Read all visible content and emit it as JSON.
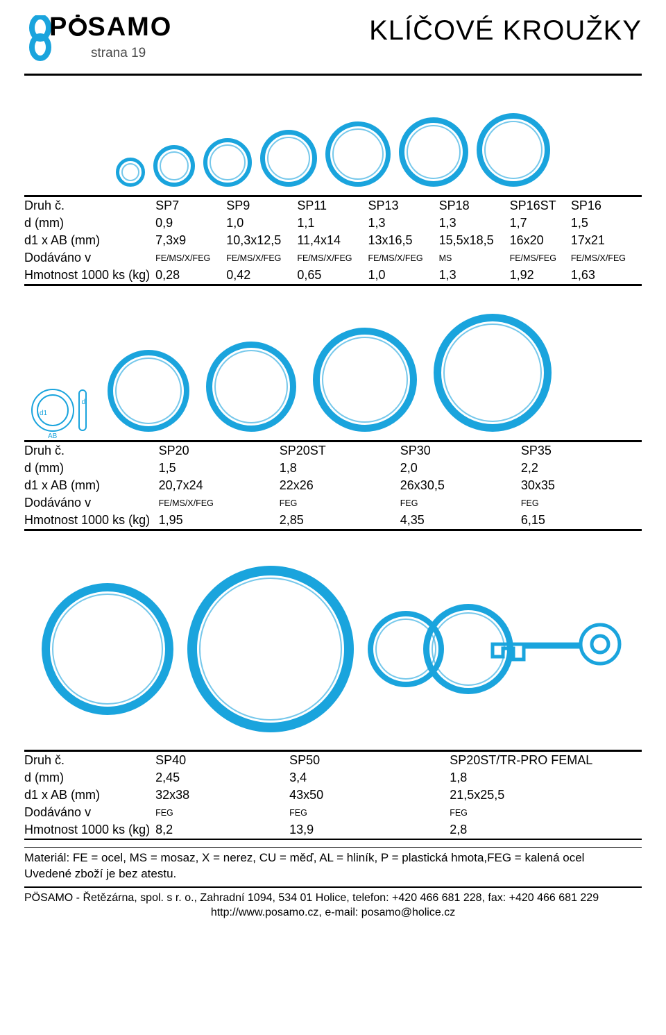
{
  "brand": "PÖSAMO",
  "page_label": "strana 19",
  "title": "KLÍČOVÉ KROUŽKY",
  "accent_color": "#1aa4dd",
  "diagram_labels": {
    "d": "d",
    "d1": "d1",
    "ab": "AB"
  },
  "table1": {
    "row_labels": [
      "Druh č.",
      "d (mm)",
      "d1 x AB (mm)",
      "Dodáváno v",
      "Hmotnost 1000 ks (kg)"
    ],
    "columns": [
      {
        "druh": "SP7",
        "d": "0,9",
        "d1ab": "7,3x9",
        "dod": "FE/MS/X/FEG",
        "hm": "0,28",
        "ring_dia": 42,
        "ring_bw": 5
      },
      {
        "druh": "SP9",
        "d": "1,0",
        "d1ab": "10,3x12,5",
        "dod": "FE/MS/X/FEG",
        "hm": "0,42",
        "ring_dia": 60,
        "ring_bw": 6
      },
      {
        "druh": "SP11",
        "d": "1,1",
        "d1ab": "11,4x14",
        "dod": "FE/MS/X/FEG",
        "hm": "0,65",
        "ring_dia": 70,
        "ring_bw": 6
      },
      {
        "druh": "SP13",
        "d": "1,3",
        "d1ab": "13x16,5",
        "dod": "FE/MS/X/FEG",
        "hm": "1,0",
        "ring_dia": 82,
        "ring_bw": 7
      },
      {
        "druh": "SP18",
        "d": "1,3",
        "d1ab": "15,5x18,5",
        "dod": "MS",
        "hm": "1,3",
        "ring_dia": 94,
        "ring_bw": 7
      },
      {
        "druh": "SP16ST",
        "d": "1,7",
        "d1ab": "16x20",
        "dod": "FE/MS/FEG",
        "hm": "1,92",
        "ring_dia": 100,
        "ring_bw": 8
      },
      {
        "druh": "SP16",
        "d": "1,5",
        "d1ab": "17x21",
        "dod": "FE/MS/X/FEG",
        "hm": "1,63",
        "ring_dia": 106,
        "ring_bw": 8
      }
    ]
  },
  "table2": {
    "row_labels": [
      "Druh č.",
      "d (mm)",
      "d1 x AB (mm)",
      "Dodáváno v",
      "Hmotnost 1000 ks (kg)"
    ],
    "columns": [
      {
        "druh": "SP20",
        "d": "1,5",
        "d1ab": "20,7x24",
        "dod": "FE/MS/X/FEG",
        "hm": "1,95",
        "ring_dia": 118,
        "ring_bw": 8
      },
      {
        "druh": "SP20ST",
        "d": "1,8",
        "d1ab": "22x26",
        "dod": "FEG",
        "hm": "2,85",
        "ring_dia": 130,
        "ring_bw": 9
      },
      {
        "druh": "SP30",
        "d": "2,0",
        "d1ab": "26x30,5",
        "dod": "FEG",
        "hm": "4,35",
        "ring_dia": 150,
        "ring_bw": 10
      },
      {
        "druh": "SP35",
        "d": "2,2",
        "d1ab": "30x35",
        "dod": "FEG",
        "hm": "6,15",
        "ring_dia": 170,
        "ring_bw": 11
      }
    ]
  },
  "table3": {
    "row_labels": [
      "Druh č.",
      "d (mm)",
      "d1 x AB (mm)",
      "Dodáváno v",
      "Hmotnost 1000 ks (kg)"
    ],
    "columns": [
      {
        "druh": "SP40",
        "d": "2,45",
        "d1ab": "32x38",
        "dod": "FEG",
        "hm": "8,2",
        "ring_dia": 190,
        "ring_bw": 12
      },
      {
        "druh": "SP50",
        "d": "3,4",
        "d1ab": "43x50",
        "dod": "FEG",
        "hm": "13,9",
        "ring_dia": 240,
        "ring_bw": 14
      },
      {
        "druh": "SP20ST/TR-PRO FEMAL",
        "d": "1,8",
        "d1ab": "21,5x25,5",
        "dod": "FEG",
        "hm": "2,8",
        "ring_dia": 110,
        "ring_bw": 8,
        "extra_ring": 130,
        "extra_bw": 9,
        "has_key": true
      }
    ]
  },
  "material_note": "Materiál: FE = ocel, MS = mosaz, X = nerez, CU = měď, AL = hliník, P = plastická hmota,FEG = kalená ocel",
  "atest_note": "Uvedené zboží je bez atestu.",
  "footer_line1": "PÖSAMO - Řetězárna, spol. s r. o., Zahradní 1094, 534 01 Holice, telefon: +420 466 681 228, fax: +420 466 681 229",
  "footer_line2": "http://www.posamo.cz, e-mail: posamo@holice.cz"
}
